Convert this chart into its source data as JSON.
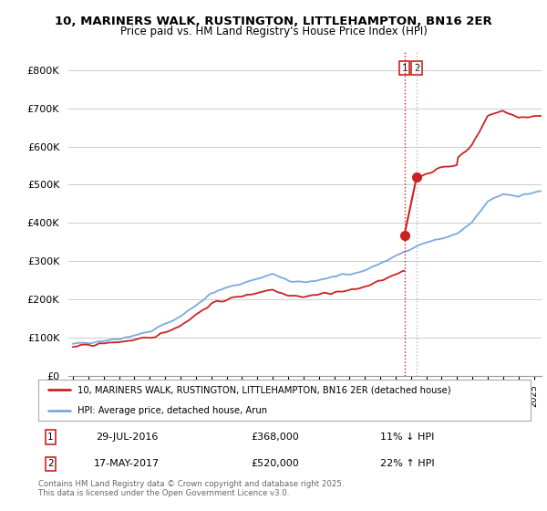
{
  "title_line1": "10, MARINERS WALK, RUSTINGTON, LITTLEHAMPTON, BN16 2ER",
  "title_line2": "Price paid vs. HM Land Registry's House Price Index (HPI)",
  "ylim": [
    0,
    850000
  ],
  "yticks": [
    0,
    100000,
    200000,
    300000,
    400000,
    500000,
    600000,
    700000,
    800000
  ],
  "ytick_labels": [
    "£0",
    "£100K",
    "£200K",
    "£300K",
    "£400K",
    "£500K",
    "£600K",
    "£700K",
    "£800K"
  ],
  "hpi_color": "#7aaadd",
  "price_color": "#cc2222",
  "vline1_color": "#cc2222",
  "vline2_color": "#aabbcc",
  "background_color": "#ffffff",
  "grid_color": "#cccccc",
  "transaction1_date": "29-JUL-2016",
  "transaction1_price": 368000,
  "transaction1_hpi_diff": "11% ↓ HPI",
  "transaction2_date": "17-MAY-2017",
  "transaction2_price": 520000,
  "transaction2_hpi_diff": "22% ↑ HPI",
  "legend_label_red": "10, MARINERS WALK, RUSTINGTON, LITTLEHAMPTON, BN16 2ER (detached house)",
  "legend_label_blue": "HPI: Average price, detached house, Arun",
  "footer": "Contains HM Land Registry data © Crown copyright and database right 2025.\nThis data is licensed under the Open Government Licence v3.0.",
  "marker1_x": 2016.57,
  "marker1_y": 368000,
  "marker2_x": 2017.37,
  "marker2_y": 520000,
  "xlim_left": 1994.7,
  "xlim_right": 2025.5
}
